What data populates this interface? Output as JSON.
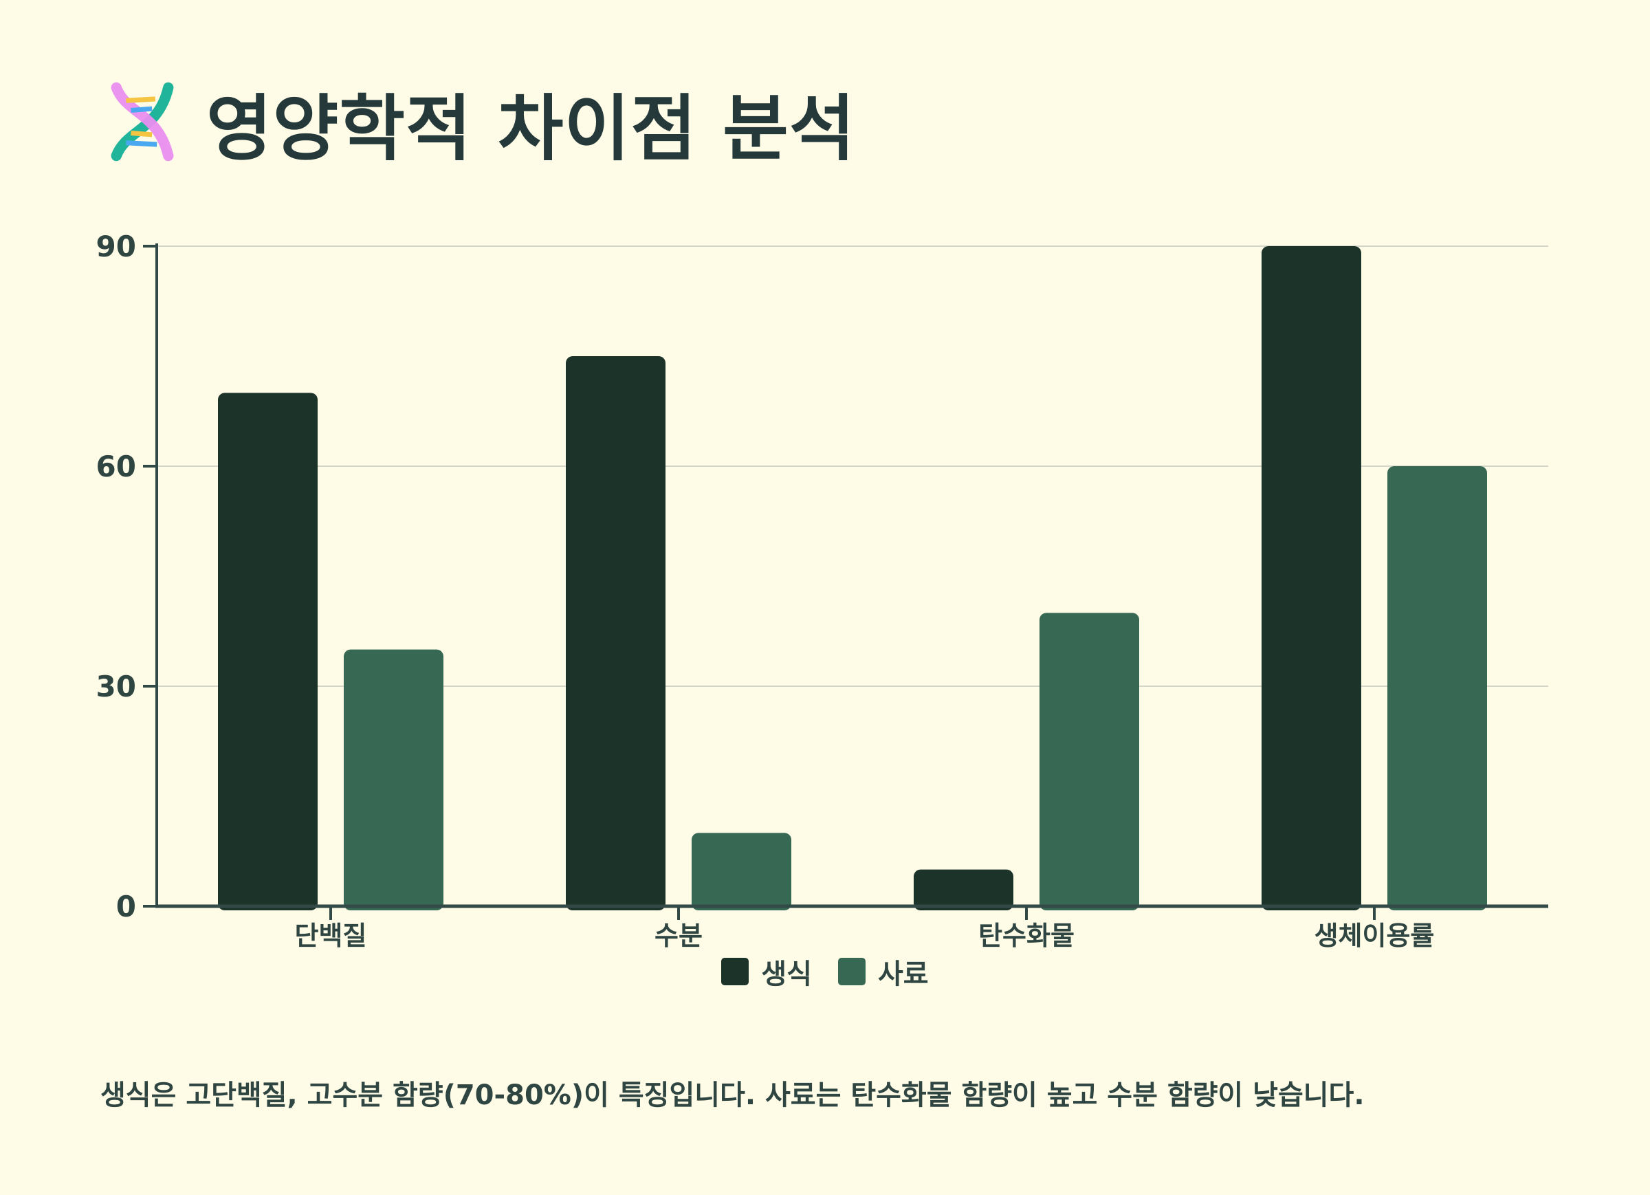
{
  "title": "영양학적 차이점 분석",
  "title_icon": "dna-icon",
  "caption": "생식은 고단백질, 고수분 함량(70-80%)이 특징입니다. 사료는 탄수화물 함량이 높고 수분 함량이 낮습니다.",
  "colors": {
    "background": "#fefbe6",
    "series_raw": "#1c3329",
    "series_kibble": "#366853",
    "axis": "#324a47",
    "grid": "#d3d6c8"
  },
  "chart_data": {
    "type": "bar",
    "title": "",
    "xlabel": "",
    "ylabel": "",
    "categories": [
      "단백질",
      "수분",
      "탄수화물",
      "생체이용률"
    ],
    "series": [
      {
        "name": "생식",
        "values": [
          70,
          75,
          5,
          90
        ]
      },
      {
        "name": "사료",
        "values": [
          35,
          10,
          40,
          60
        ]
      }
    ],
    "ylim": [
      0,
      90
    ],
    "yticks": [
      0,
      30,
      60,
      90
    ],
    "grid": true,
    "legend_position": "bottom-center"
  }
}
